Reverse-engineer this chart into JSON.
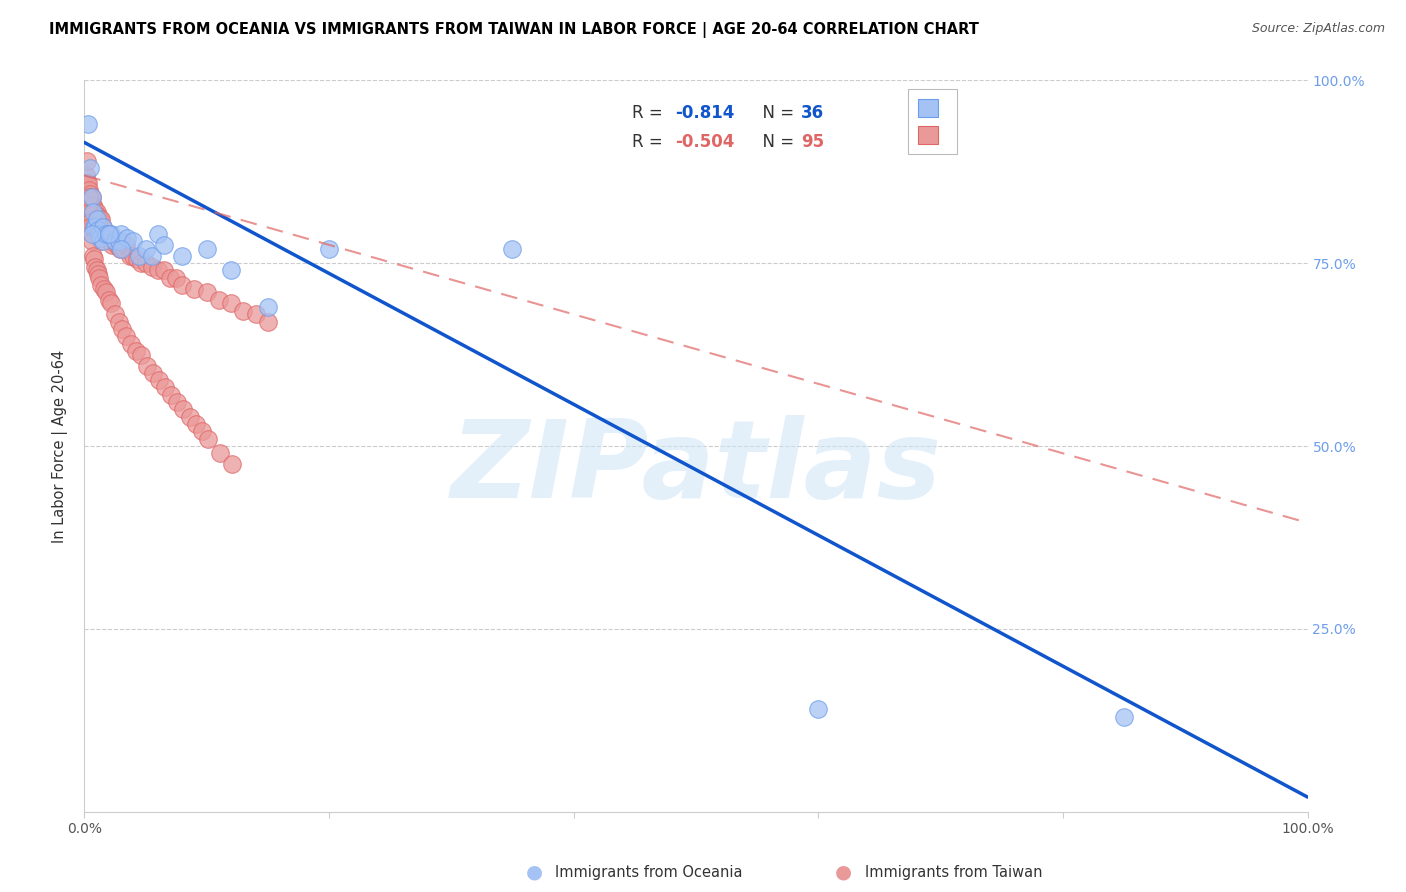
{
  "title": "IMMIGRANTS FROM OCEANIA VS IMMIGRANTS FROM TAIWAN IN LABOR FORCE | AGE 20-64 CORRELATION CHART",
  "source": "Source: ZipAtlas.com",
  "ylabel": "In Labor Force | Age 20-64",
  "xlim": [
    0,
    1.0
  ],
  "ylim": [
    0,
    1.0
  ],
  "watermark": "ZIPatlas",
  "legend_blue_r": "-0.814",
  "legend_blue_n": "36",
  "legend_pink_r": "-0.504",
  "legend_pink_n": "95",
  "blue_fill": "#a4c2f4",
  "blue_edge": "#6d9eeb",
  "pink_fill": "#ea9999",
  "pink_edge": "#e06666",
  "blue_line_color": "#1155cc",
  "pink_line_color": "#cc4125",
  "pink_dash_color": "#e06666",
  "grid_color": "#cccccc",
  "right_axis_color": "#6d9eeb",
  "oceania_scatter_x": [
    0.003,
    0.005,
    0.006,
    0.007,
    0.008,
    0.009,
    0.01,
    0.011,
    0.012,
    0.013,
    0.015,
    0.015,
    0.018,
    0.02,
    0.022,
    0.025,
    0.028,
    0.03,
    0.035,
    0.04,
    0.045,
    0.05,
    0.055,
    0.06,
    0.065,
    0.08,
    0.1,
    0.12,
    0.15,
    0.2,
    0.35,
    0.6,
    0.85,
    0.006,
    0.02,
    0.03
  ],
  "oceania_scatter_y": [
    0.94,
    0.88,
    0.84,
    0.82,
    0.8,
    0.8,
    0.81,
    0.795,
    0.79,
    0.785,
    0.8,
    0.78,
    0.79,
    0.79,
    0.79,
    0.78,
    0.78,
    0.79,
    0.785,
    0.78,
    0.76,
    0.77,
    0.76,
    0.79,
    0.775,
    0.76,
    0.77,
    0.74,
    0.69,
    0.77,
    0.77,
    0.14,
    0.13,
    0.79,
    0.79,
    0.77
  ],
  "taiwan_scatter_x": [
    0.001,
    0.002,
    0.002,
    0.003,
    0.003,
    0.004,
    0.004,
    0.005,
    0.005,
    0.006,
    0.006,
    0.007,
    0.007,
    0.008,
    0.008,
    0.009,
    0.009,
    0.01,
    0.01,
    0.011,
    0.011,
    0.012,
    0.012,
    0.013,
    0.013,
    0.014,
    0.014,
    0.015,
    0.016,
    0.017,
    0.018,
    0.019,
    0.02,
    0.021,
    0.022,
    0.023,
    0.025,
    0.027,
    0.029,
    0.03,
    0.032,
    0.034,
    0.037,
    0.04,
    0.043,
    0.046,
    0.05,
    0.055,
    0.06,
    0.065,
    0.07,
    0.075,
    0.08,
    0.09,
    0.1,
    0.11,
    0.12,
    0.13,
    0.14,
    0.15,
    0.003,
    0.004,
    0.005,
    0.006,
    0.007,
    0.008,
    0.009,
    0.01,
    0.011,
    0.012,
    0.014,
    0.016,
    0.018,
    0.02,
    0.022,
    0.025,
    0.028,
    0.031,
    0.034,
    0.038,
    0.042,
    0.046,
    0.051,
    0.056,
    0.061,
    0.066,
    0.071,
    0.076,
    0.081,
    0.086,
    0.091,
    0.096,
    0.101,
    0.111,
    0.121
  ],
  "taiwan_scatter_y": [
    0.87,
    0.89,
    0.86,
    0.86,
    0.84,
    0.85,
    0.83,
    0.845,
    0.82,
    0.84,
    0.81,
    0.83,
    0.8,
    0.825,
    0.795,
    0.82,
    0.79,
    0.82,
    0.795,
    0.815,
    0.795,
    0.81,
    0.79,
    0.81,
    0.785,
    0.81,
    0.78,
    0.8,
    0.79,
    0.79,
    0.79,
    0.785,
    0.79,
    0.78,
    0.785,
    0.775,
    0.78,
    0.775,
    0.77,
    0.78,
    0.77,
    0.775,
    0.76,
    0.76,
    0.755,
    0.75,
    0.75,
    0.745,
    0.74,
    0.74,
    0.73,
    0.73,
    0.72,
    0.715,
    0.71,
    0.7,
    0.695,
    0.685,
    0.68,
    0.67,
    0.83,
    0.84,
    0.8,
    0.78,
    0.76,
    0.755,
    0.745,
    0.74,
    0.735,
    0.73,
    0.72,
    0.715,
    0.71,
    0.7,
    0.695,
    0.68,
    0.67,
    0.66,
    0.65,
    0.64,
    0.63,
    0.625,
    0.61,
    0.6,
    0.59,
    0.58,
    0.57,
    0.56,
    0.55,
    0.54,
    0.53,
    0.52,
    0.51,
    0.49,
    0.475
  ],
  "blue_trendline_x": [
    0.0,
    1.0
  ],
  "blue_trendline_y": [
    0.915,
    0.02
  ],
  "pink_trendline_x": [
    0.0,
    1.0
  ],
  "pink_trendline_y": [
    0.87,
    0.395
  ]
}
